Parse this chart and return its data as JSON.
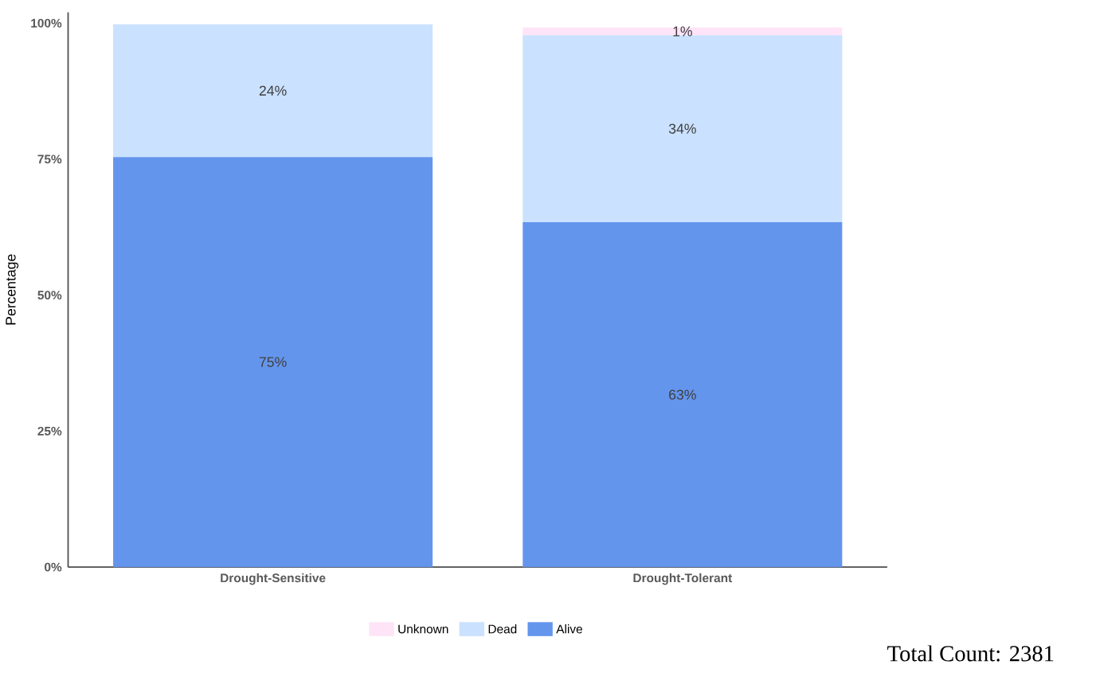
{
  "chart_data": {
    "type": "bar",
    "stacked": true,
    "ylabel": "Percentage",
    "categories": [
      "Drought-Sensitive",
      "Drought-Tolerant"
    ],
    "series": [
      {
        "name": "Alive",
        "color": "#6495ed",
        "values": [
          75.4,
          63.4
        ],
        "value_labels": [
          "75%",
          "63%"
        ]
      },
      {
        "name": "Dead",
        "color": "#cae1ff",
        "values": [
          24.4,
          34.4
        ],
        "value_labels": [
          "24%",
          "34%"
        ]
      },
      {
        "name": "Unknown",
        "color": "#ffe4f8",
        "values": [
          0,
          1.4
        ],
        "value_labels": [
          null,
          "1%"
        ]
      }
    ],
    "ylim": [
      0,
      100
    ],
    "yticks": [
      {
        "value": 0,
        "label": "0%"
      },
      {
        "value": 25,
        "label": "25%"
      },
      {
        "value": 50,
        "label": "50%"
      },
      {
        "value": 75,
        "label": "75%"
      },
      {
        "value": 100,
        "label": "100%"
      }
    ],
    "grid": false,
    "legend": "bottom",
    "annotations": [
      "Total Count: 2381"
    ]
  }
}
